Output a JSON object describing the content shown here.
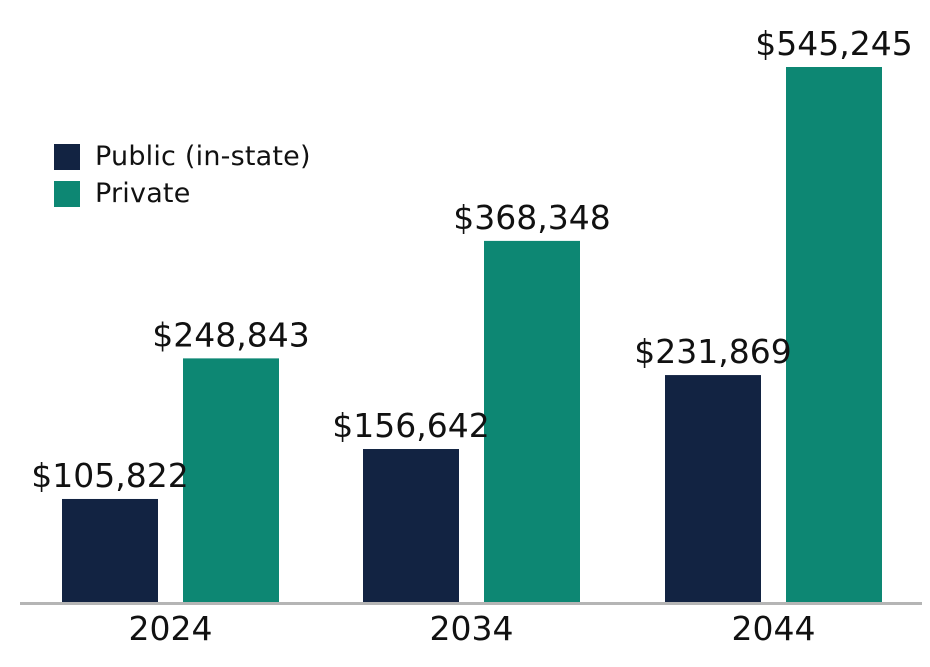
{
  "chart_data": {
    "type": "bar",
    "title": "",
    "xlabel": "",
    "ylabel": "",
    "categories": [
      "2024",
      "2034",
      "2044"
    ],
    "series": [
      {
        "name": "Public (in-state)",
        "color": "#122342",
        "values": [
          105822,
          156642,
          231869
        ],
        "labels": [
          "$105,822",
          "$156,642",
          "$231,869"
        ]
      },
      {
        "name": "Private",
        "color": "#0d8773",
        "values": [
          248843,
          368348,
          545245
        ],
        "labels": [
          "$248,843",
          "$368,348",
          "$545,245"
        ]
      }
    ],
    "ylim": [
      0,
      545245
    ],
    "grid": false,
    "legend": "top-left",
    "axis_color": "#b5b5b5"
  }
}
